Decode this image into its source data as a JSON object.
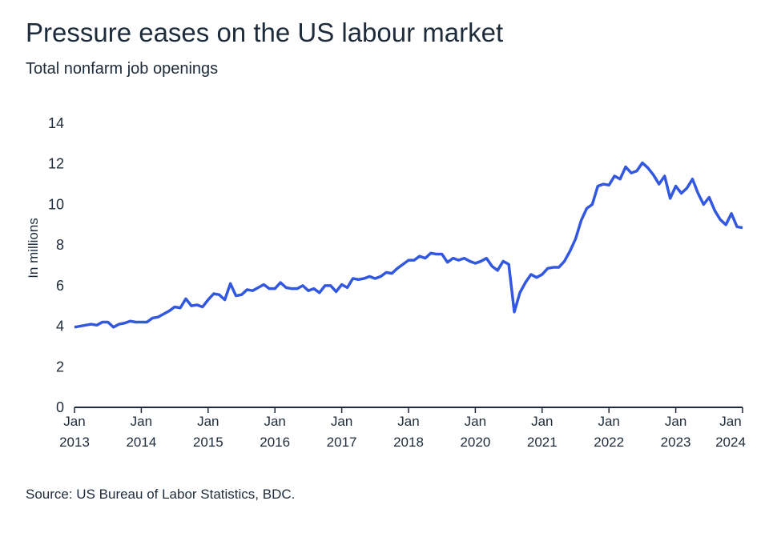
{
  "chart_data": {
    "type": "line",
    "title": "Pressure eases on the US labour market",
    "subtitle": "Total nonfarm job openings",
    "y_label": "In millions",
    "source": "Source: US Bureau of Labor Statistics, BDC.",
    "categories": [
      "Jan\n2013",
      null,
      null,
      null,
      null,
      null,
      null,
      null,
      null,
      null,
      null,
      null,
      "Jan\n2014",
      null,
      null,
      null,
      null,
      null,
      null,
      null,
      null,
      null,
      null,
      null,
      "Jan\n2015",
      null,
      null,
      null,
      null,
      null,
      null,
      null,
      null,
      null,
      null,
      null,
      "Jan\n2016",
      null,
      null,
      null,
      null,
      null,
      null,
      null,
      null,
      null,
      null,
      null,
      "Jan\n2017",
      null,
      null,
      null,
      null,
      null,
      null,
      null,
      null,
      null,
      null,
      null,
      "Jan\n2018",
      null,
      null,
      null,
      null,
      null,
      null,
      null,
      null,
      null,
      null,
      null,
      "Jan\n2020",
      null,
      null,
      null,
      null,
      null,
      null,
      null,
      null,
      null,
      null,
      null,
      "Jan\n2021",
      null,
      null,
      null,
      null,
      null,
      null,
      null,
      null,
      null,
      null,
      null,
      "Jan\n2022",
      null,
      null,
      null,
      null,
      null,
      null,
      null,
      null,
      null,
      null,
      null,
      "Jan\n2023",
      null,
      null,
      null,
      null,
      null,
      null,
      null,
      null,
      null,
      null,
      null,
      "Jan\n2024"
    ],
    "series": [
      {
        "name": "Job openings",
        "color": "#3358e0",
        "values": [
          3.95,
          4.0,
          4.05,
          4.1,
          4.05,
          4.2,
          4.2,
          3.95,
          4.1,
          4.15,
          4.25,
          4.2,
          4.2,
          4.2,
          4.4,
          4.45,
          4.6,
          4.75,
          4.95,
          4.9,
          5.35,
          5.0,
          5.05,
          4.95,
          5.3,
          5.6,
          5.55,
          5.3,
          6.1,
          5.5,
          5.55,
          5.8,
          5.75,
          5.9,
          6.05,
          5.85,
          5.85,
          6.15,
          5.9,
          5.85,
          5.85,
          6.0,
          5.75,
          5.85,
          5.65,
          6.0,
          6.0,
          5.7,
          6.05,
          5.9,
          6.35,
          6.3,
          6.35,
          6.45,
          6.35,
          6.45,
          6.65,
          6.6,
          6.85,
          7.05,
          7.25,
          7.25,
          7.45,
          7.35,
          7.6,
          7.55,
          7.55,
          7.15,
          7.35,
          7.25,
          7.35,
          7.2,
          7.1,
          7.2,
          7.35,
          6.95,
          6.75,
          7.2,
          7.05,
          4.7,
          5.65,
          6.15,
          6.55,
          6.4,
          6.55,
          6.85,
          6.9,
          6.9,
          7.2,
          7.7,
          8.3,
          9.2,
          9.8,
          10.0,
          10.9,
          11.0,
          10.95,
          11.4,
          11.25,
          11.85,
          11.55,
          11.65,
          12.05,
          11.8,
          11.45,
          11.0,
          11.4,
          10.3,
          10.9,
          10.55,
          10.8,
          11.25,
          10.55,
          10.0,
          10.35,
          9.7,
          9.25,
          9.0,
          9.55,
          8.9,
          8.85
        ]
      }
    ],
    "ylim": [
      0,
      14
    ],
    "yticks": [
      0,
      2,
      4,
      6,
      8,
      10,
      12,
      14
    ],
    "grid": false
  }
}
